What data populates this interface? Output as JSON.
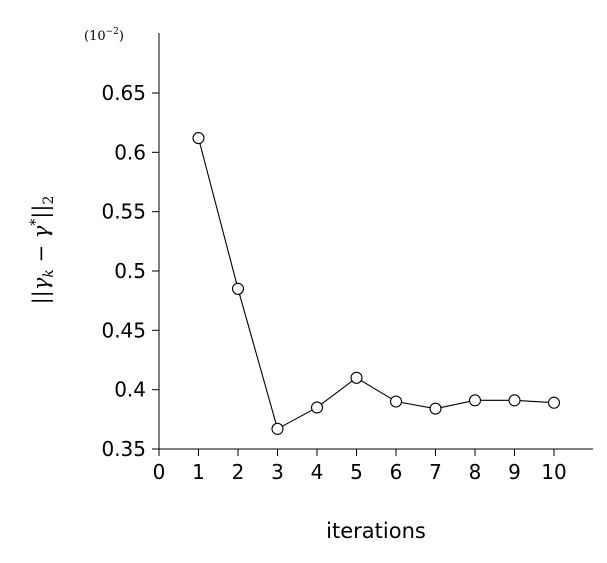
{
  "chart_data": {
    "type": "line",
    "xlabel": "iterations",
    "ylabel": {
      "open": "||",
      "gamma": "γ",
      "sub_k": "k",
      "minus": " − ",
      "gamma2": "γ",
      "star": "*",
      "close": "||",
      "sub_2": "2"
    },
    "scale_note": "(10",
    "scale_exp": "−2",
    "scale_close": ")",
    "xlim": [
      0,
      11
    ],
    "ylim": [
      0.35,
      0.68
    ],
    "xticks": [
      0,
      1,
      2,
      3,
      4,
      5,
      6,
      7,
      8,
      9,
      10
    ],
    "yticks": [
      0.35,
      0.4,
      0.45,
      0.5,
      0.55,
      0.6,
      0.65
    ],
    "ytick_labels": [
      "0.35",
      "0.4",
      "0.45",
      "0.5",
      "0.55",
      "0.6",
      "0.65"
    ],
    "grid": false,
    "marker": "open-circle",
    "series": [
      {
        "x": [
          1,
          2,
          3,
          4,
          5,
          6,
          7,
          8,
          9,
          10
        ],
        "values": [
          0.612,
          0.485,
          0.367,
          0.385,
          0.41,
          0.39,
          0.384,
          0.391,
          0.391,
          0.389
        ]
      }
    ]
  }
}
